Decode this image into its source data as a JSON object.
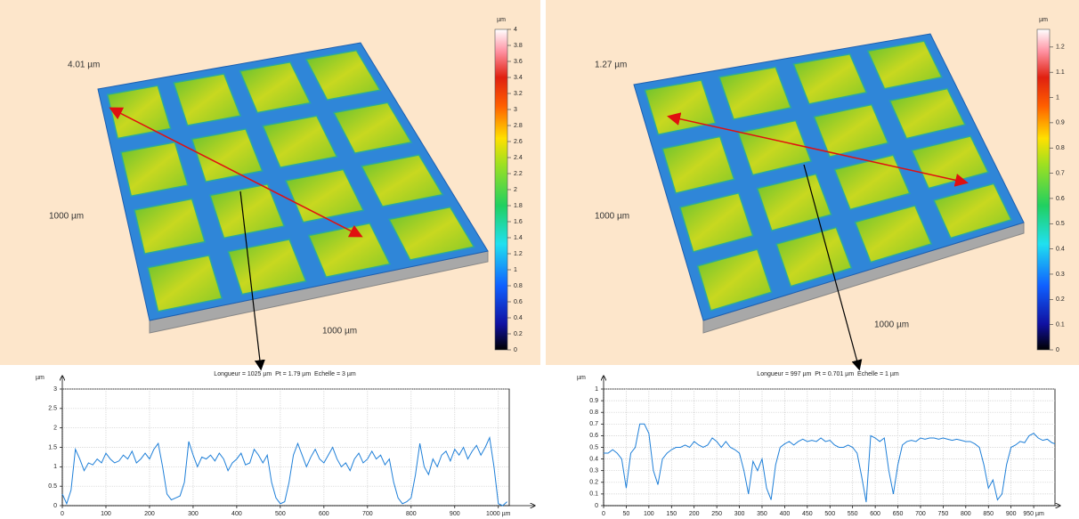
{
  "chart_data": [
    {
      "type": "surface",
      "z_label": "4.01 µm",
      "y_label": "1000 µm",
      "x_label": "1000 µm",
      "colorbar_unit": "µm",
      "clim": [
        0,
        4
      ],
      "colorbar_ticks": [
        0,
        0.2,
        0.4,
        0.6,
        0.8,
        1,
        1.2,
        1.4,
        1.6,
        1.8,
        2,
        2.2,
        2.4,
        2.6,
        2.8,
        3,
        3.2,
        3.4,
        3.6,
        3.8,
        4
      ]
    },
    {
      "type": "surface",
      "z_label": "1.27 µm",
      "y_label": "1000 µm",
      "x_label": "1000 µm",
      "colorbar_unit": "µm",
      "clim": [
        0,
        1.27
      ],
      "colorbar_ticks": [
        0,
        0.1,
        0.2,
        0.3,
        0.4,
        0.5,
        0.6,
        0.7,
        0.8,
        0.9,
        1,
        1.1,
        1.2
      ]
    },
    {
      "type": "line",
      "title": "Longueur = 1025 µm  Pt = 1.79 µm  Echelle = 3 µm",
      "y_label": "µm",
      "color": "#1e7fd8",
      "grid": true,
      "xlim": [
        0,
        1025
      ],
      "xticks": [
        0,
        100,
        200,
        300,
        400,
        500,
        600,
        700,
        800,
        900,
        {
          "value": 1000,
          "label": "1000 µm"
        }
      ],
      "ylim": [
        0,
        3
      ],
      "yticks": [
        0,
        0.5,
        1,
        1.5,
        2,
        2.5,
        3
      ],
      "x": [
        0,
        10,
        20,
        30,
        40,
        50,
        60,
        70,
        80,
        90,
        100,
        110,
        120,
        130,
        140,
        150,
        160,
        170,
        180,
        190,
        200,
        210,
        220,
        230,
        240,
        250,
        260,
        270,
        280,
        290,
        300,
        310,
        320,
        330,
        340,
        350,
        360,
        370,
        380,
        390,
        400,
        410,
        420,
        430,
        440,
        450,
        460,
        470,
        480,
        490,
        500,
        510,
        520,
        530,
        540,
        550,
        560,
        570,
        580,
        590,
        600,
        610,
        620,
        630,
        640,
        650,
        660,
        670,
        680,
        690,
        700,
        710,
        720,
        730,
        740,
        750,
        760,
        770,
        780,
        790,
        800,
        810,
        820,
        830,
        840,
        850,
        860,
        870,
        880,
        890,
        900,
        910,
        920,
        930,
        940,
        950,
        960,
        970,
        980,
        990,
        1000,
        1010,
        1020
      ],
      "values": [
        0.3,
        0.05,
        0.4,
        1.45,
        1.2,
        0.9,
        1.1,
        1.05,
        1.2,
        1.1,
        1.35,
        1.2,
        1.1,
        1.15,
        1.3,
        1.2,
        1.4,
        1.1,
        1.2,
        1.35,
        1.2,
        1.45,
        1.6,
        1.0,
        0.3,
        0.15,
        0.2,
        0.25,
        0.6,
        1.65,
        1.3,
        1.0,
        1.25,
        1.2,
        1.3,
        1.15,
        1.35,
        1.2,
        0.9,
        1.1,
        1.2,
        1.35,
        1.05,
        1.1,
        1.45,
        1.3,
        1.1,
        1.3,
        0.6,
        0.2,
        0.05,
        0.1,
        0.6,
        1.3,
        1.6,
        1.3,
        1.0,
        1.25,
        1.45,
        1.2,
        1.1,
        1.3,
        1.5,
        1.2,
        1.0,
        1.1,
        0.9,
        1.2,
        1.35,
        1.1,
        1.2,
        1.4,
        1.2,
        1.3,
        1.05,
        1.2,
        0.6,
        0.2,
        0.05,
        0.1,
        0.2,
        0.8,
        1.6,
        1.0,
        0.8,
        1.2,
        1.0,
        1.3,
        1.4,
        1.15,
        1.45,
        1.3,
        1.5,
        1.2,
        1.4,
        1.55,
        1.3,
        1.5,
        1.75,
        1.0,
        0.05,
        0.0,
        0.1
      ]
    },
    {
      "type": "line",
      "title": "Longueur = 997 µm  Pt = 0.701 µm  Echelle = 1 µm",
      "y_label": "µm",
      "color": "#1e7fd8",
      "grid": true,
      "xlim": [
        0,
        997
      ],
      "xticks": [
        0,
        50,
        100,
        150,
        200,
        250,
        300,
        350,
        400,
        450,
        500,
        550,
        600,
        650,
        700,
        750,
        800,
        850,
        900,
        {
          "value": 950,
          "label": "950 µm"
        }
      ],
      "ylim": [
        0,
        1
      ],
      "yticks": [
        0,
        0.1,
        0.2,
        0.3,
        0.4,
        0.5,
        0.6,
        0.7,
        0.8,
        0.9,
        1
      ],
      "x": [
        0,
        10,
        20,
        30,
        40,
        50,
        60,
        70,
        80,
        90,
        100,
        110,
        120,
        130,
        140,
        150,
        160,
        170,
        180,
        190,
        200,
        210,
        220,
        230,
        240,
        250,
        260,
        270,
        280,
        290,
        300,
        310,
        320,
        330,
        340,
        350,
        360,
        370,
        380,
        390,
        400,
        410,
        420,
        430,
        440,
        450,
        460,
        470,
        480,
        490,
        500,
        510,
        520,
        530,
        540,
        550,
        560,
        570,
        580,
        590,
        600,
        610,
        620,
        630,
        640,
        650,
        660,
        670,
        680,
        690,
        700,
        710,
        720,
        730,
        740,
        750,
        760,
        770,
        780,
        790,
        800,
        810,
        820,
        830,
        840,
        850,
        860,
        870,
        880,
        890,
        900,
        910,
        920,
        930,
        940,
        950,
        960,
        970,
        980,
        990,
        997
      ],
      "values": [
        0.45,
        0.45,
        0.48,
        0.45,
        0.4,
        0.15,
        0.45,
        0.5,
        0.7,
        0.7,
        0.62,
        0.3,
        0.18,
        0.4,
        0.45,
        0.48,
        0.5,
        0.5,
        0.52,
        0.5,
        0.55,
        0.52,
        0.5,
        0.52,
        0.58,
        0.55,
        0.5,
        0.55,
        0.5,
        0.48,
        0.45,
        0.3,
        0.1,
        0.38,
        0.3,
        0.4,
        0.15,
        0.05,
        0.35,
        0.5,
        0.53,
        0.55,
        0.52,
        0.55,
        0.57,
        0.55,
        0.56,
        0.55,
        0.58,
        0.55,
        0.56,
        0.52,
        0.5,
        0.5,
        0.52,
        0.5,
        0.45,
        0.25,
        0.03,
        0.6,
        0.58,
        0.55,
        0.58,
        0.3,
        0.1,
        0.35,
        0.52,
        0.55,
        0.56,
        0.55,
        0.58,
        0.57,
        0.58,
        0.58,
        0.57,
        0.58,
        0.57,
        0.56,
        0.57,
        0.56,
        0.55,
        0.55,
        0.53,
        0.5,
        0.35,
        0.15,
        0.22,
        0.05,
        0.1,
        0.35,
        0.5,
        0.52,
        0.55,
        0.54,
        0.6,
        0.62,
        0.58,
        0.56,
        0.57,
        0.54,
        0.53
      ]
    }
  ]
}
